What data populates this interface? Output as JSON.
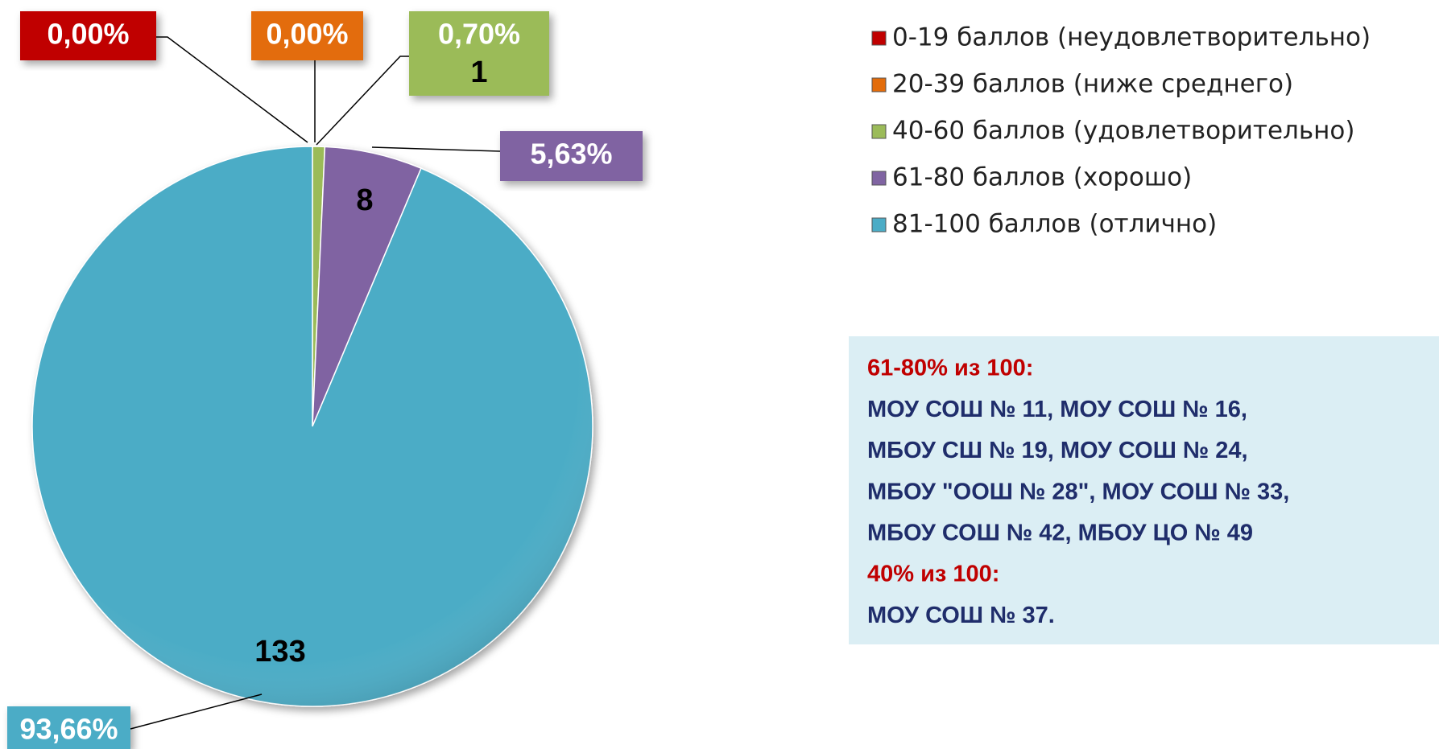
{
  "chart_data": {
    "type": "pie",
    "categories": [
      "0-19 баллов (неудовлетворительно)",
      "20-39 баллов (ниже среднего)",
      "40-60 баллов (удовлетворительно)",
      "61-80 баллов (хорошо)",
      "81-100 баллов (отлично)"
    ],
    "values": [
      0,
      0,
      1,
      8,
      133
    ],
    "percent_labels": [
      "0,00%",
      "0,00%",
      "0,70%",
      "5,63%",
      "93,66%"
    ],
    "colors": [
      "#c00000",
      "#e36c0a",
      "#9bbb59",
      "#8064a2",
      "#4bacc6"
    ],
    "legend": "right"
  },
  "note": [
    {
      "heading": "61-80% из 100:",
      "lines": [
        "МОУ СОШ № 11, МОУ СОШ № 16,",
        "МБОУ СШ № 19, МОУ СОШ № 24,",
        "МБОУ \"ООШ № 28\", МОУ СОШ № 33,",
        "МБОУ СОШ № 42, МБОУ ЦО № 49"
      ]
    },
    {
      "heading": "40% из 100:",
      "lines": [
        "МОУ СОШ № 37."
      ]
    }
  ]
}
